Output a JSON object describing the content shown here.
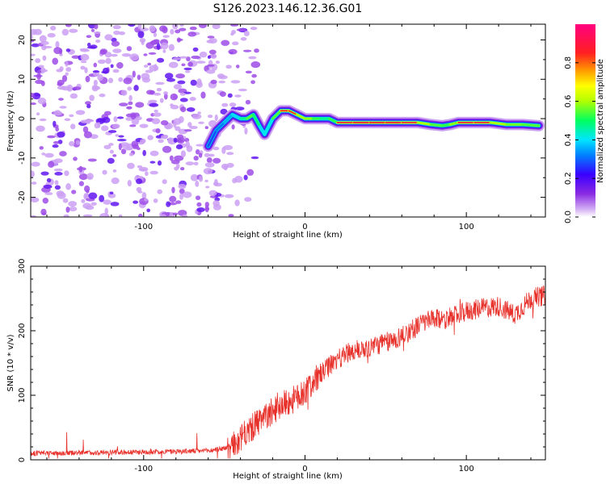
{
  "title": "S126.2023.146.12.36.G01",
  "chart_data": [
    {
      "type": "heatmap",
      "xlabel": "Height of straight line (km)",
      "ylabel": "Frequency (Hz)",
      "xlim": [
        -170,
        149
      ],
      "ylim": [
        -25,
        24
      ],
      "x_ticks": [
        -100,
        0,
        100
      ],
      "y_ticks": [
        -20,
        -10,
        0,
        10,
        20
      ],
      "noise_region_x": [
        -170,
        -50
      ],
      "ridge": [
        {
          "x": -60,
          "y": -7,
          "a": 0.35
        },
        {
          "x": -55,
          "y": -3,
          "a": 0.4
        },
        {
          "x": -50,
          "y": -1,
          "a": 0.45
        },
        {
          "x": -45,
          "y": 1,
          "a": 0.5
        },
        {
          "x": -40,
          "y": 0,
          "a": 0.55
        },
        {
          "x": -36,
          "y": 0,
          "a": 0.7
        },
        {
          "x": -32,
          "y": 1,
          "a": 0.75
        },
        {
          "x": -28,
          "y": -2,
          "a": 0.55
        },
        {
          "x": -25,
          "y": -4,
          "a": 0.5
        },
        {
          "x": -20,
          "y": 0,
          "a": 0.6
        },
        {
          "x": -15,
          "y": 2,
          "a": 0.85
        },
        {
          "x": -10,
          "y": 2,
          "a": 0.9
        },
        {
          "x": -5,
          "y": 1,
          "a": 0.8
        },
        {
          "x": 0,
          "y": 0,
          "a": 0.8
        },
        {
          "x": 5,
          "y": 0,
          "a": 0.75
        },
        {
          "x": 10,
          "y": 0,
          "a": 0.65
        },
        {
          "x": 15,
          "y": 0,
          "a": 0.6
        },
        {
          "x": 20,
          "y": -1,
          "a": 0.8
        },
        {
          "x": 30,
          "y": -1,
          "a": 0.95
        },
        {
          "x": 40,
          "y": -1,
          "a": 0.95
        },
        {
          "x": 50,
          "y": -1,
          "a": 0.95
        },
        {
          "x": 60,
          "y": -1,
          "a": 0.95
        },
        {
          "x": 70,
          "y": -1,
          "a": 0.85
        },
        {
          "x": 78,
          "y": -1.5,
          "a": 0.75
        },
        {
          "x": 85,
          "y": -1.8,
          "a": 0.7
        },
        {
          "x": 90,
          "y": -1.5,
          "a": 0.7
        },
        {
          "x": 95,
          "y": -1,
          "a": 0.85
        },
        {
          "x": 105,
          "y": -1,
          "a": 0.9
        },
        {
          "x": 115,
          "y": -1,
          "a": 0.85
        },
        {
          "x": 125,
          "y": -1.5,
          "a": 0.75
        },
        {
          "x": 135,
          "y": -1.5,
          "a": 0.75
        },
        {
          "x": 145,
          "y": -1.8,
          "a": 0.7
        }
      ],
      "colorbar": {
        "label": "Normalized spectral amplitude",
        "range": [
          0,
          1
        ],
        "ticks": [
          0.0,
          0.2,
          0.4,
          0.6,
          0.8
        ],
        "tick_labels": [
          "0.0",
          "0.2",
          "0.4",
          "0.6",
          "0.8"
        ]
      }
    },
    {
      "type": "line",
      "xlabel": "Height of straight line (km)",
      "ylabel": "SNR (10 * v/v)",
      "xlim": [
        -170,
        149
      ],
      "ylim": [
        0,
        300
      ],
      "x_ticks": [
        -100,
        0,
        100
      ],
      "y_ticks": [
        0,
        100,
        200,
        300
      ],
      "color": "#e8302a",
      "trend": [
        {
          "x": -170,
          "y": 10
        },
        {
          "x": -100,
          "y": 12
        },
        {
          "x": -60,
          "y": 14
        },
        {
          "x": -45,
          "y": 20
        },
        {
          "x": -35,
          "y": 45
        },
        {
          "x": -25,
          "y": 65
        },
        {
          "x": -15,
          "y": 85
        },
        {
          "x": -5,
          "y": 95
        },
        {
          "x": 5,
          "y": 120
        },
        {
          "x": 15,
          "y": 145
        },
        {
          "x": 25,
          "y": 165
        },
        {
          "x": 40,
          "y": 175
        },
        {
          "x": 55,
          "y": 185
        },
        {
          "x": 65,
          "y": 200
        },
        {
          "x": 75,
          "y": 215
        },
        {
          "x": 90,
          "y": 220
        },
        {
          "x": 100,
          "y": 230
        },
        {
          "x": 110,
          "y": 235
        },
        {
          "x": 120,
          "y": 238
        },
        {
          "x": 130,
          "y": 225
        },
        {
          "x": 140,
          "y": 250
        },
        {
          "x": 149,
          "y": 255
        }
      ]
    }
  ]
}
